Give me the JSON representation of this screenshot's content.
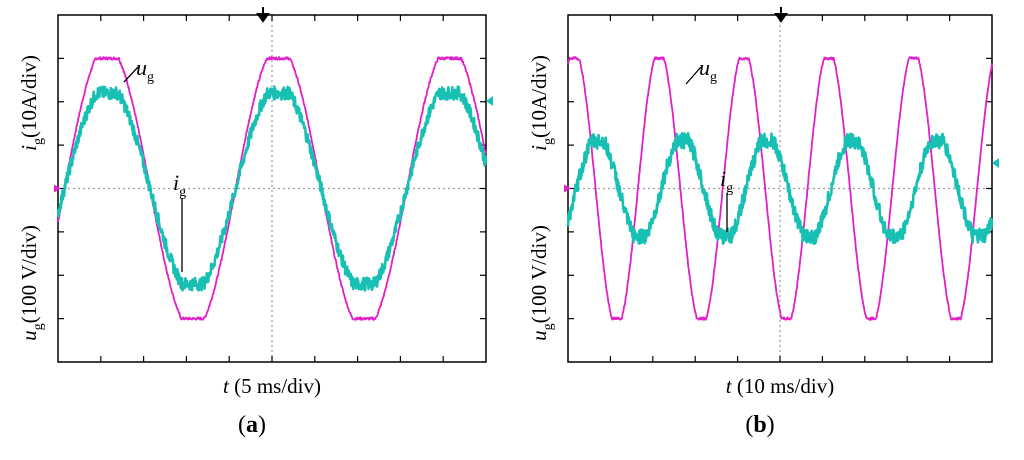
{
  "colors": {
    "ug": "#e020c8",
    "ig": "#18c0b4",
    "axis": "#000000",
    "grid": "#9a9a9a"
  },
  "chart_data": [
    {
      "type": "line",
      "panel_label": "a",
      "title": "",
      "xlabel": {
        "var": "t",
        "unit": "(5 ms/div)"
      },
      "ylabel_top": {
        "var": "i",
        "sub": "g",
        "unit": "(10A/div)"
      },
      "ylabel_bottom": {
        "var": "u",
        "sub": "g",
        "unit": "(100 V/div)"
      },
      "x_divisions": 10,
      "y_divisions": 8,
      "ylim_div": [
        -4,
        4
      ],
      "series": [
        {
          "name": "ug",
          "label_var": "u",
          "label_sub": "g",
          "color": "#e020c8",
          "period_div": 4.0,
          "phase_div": 0.15,
          "amplitude_div": 3.0,
          "flat_top_fraction": 0.6,
          "noise": 0.015
        },
        {
          "name": "ig",
          "label_var": "i",
          "label_sub": "g",
          "color": "#18c0b4",
          "period_div": 4.0,
          "phase_div": 0.15,
          "amplitude_div": 2.2,
          "flat_top_fraction": 0.55,
          "noise": 0.05
        }
      ]
    },
    {
      "type": "line",
      "panel_label": "b",
      "title": "",
      "xlabel": {
        "var": "t",
        "unit": "(10 ms/div)"
      },
      "ylabel_top": {
        "var": "i",
        "sub": "g",
        "unit": "(10A/div)"
      },
      "ylabel_bottom": {
        "var": "u",
        "sub": "g",
        "unit": "(100 V/div)"
      },
      "x_divisions": 10,
      "y_divisions": 8,
      "ylim_div": [
        -4,
        4
      ],
      "series": [
        {
          "name": "ug",
          "label_var": "u",
          "label_sub": "g",
          "color": "#e020c8",
          "period_div": 2.0,
          "phase_div": -0.35,
          "amplitude_div": 3.0,
          "flat_top_fraction": 0.5,
          "noise": 0.015
        },
        {
          "name": "ig",
          "label_var": "i",
          "label_sub": "g",
          "color": "#18c0b4",
          "period_div": 2.0,
          "phase_div": 0.2,
          "amplitude_div": 1.1,
          "flat_top_fraction": 0.6,
          "noise": 0.06
        }
      ]
    }
  ]
}
